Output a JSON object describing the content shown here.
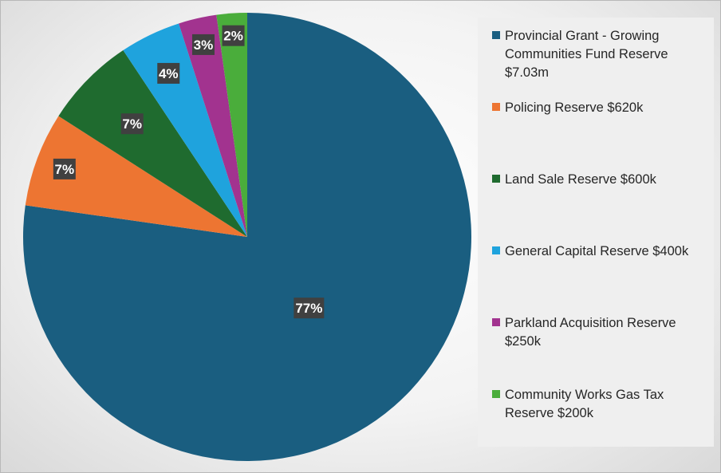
{
  "chart_data": {
    "type": "pie",
    "categories": [
      "Provincial Grant - Growing Communities Fund Reserve $7.03m",
      "Policing Reserve $620k",
      "Land Sale Reserve $600k",
      "General Capital Reserve $400k",
      "Parkland Acquisition Reserve $250k",
      "Community Works Gas Tax Reserve $200k"
    ],
    "values": [
      7030000,
      620000,
      600000,
      400000,
      250000,
      200000
    ],
    "data_labels": [
      "77%",
      "7%",
      "7%",
      "4%",
      "3%",
      "2%"
    ],
    "colors": [
      "#1a5e80",
      "#ed7532",
      "#1f6b2f",
      "#1fa3dd",
      "#a2338f",
      "#4aad3b"
    ],
    "legend_position": "right"
  }
}
